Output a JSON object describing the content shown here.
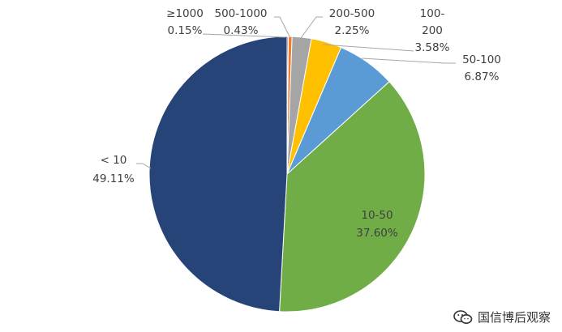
{
  "chart_data": {
    "type": "pie",
    "start_angle_deg": 0,
    "direction": "clockwise",
    "slices": [
      {
        "label": "≥1000",
        "pct_text": "0.15%",
        "value": 0.15,
        "color": "#C0504D"
      },
      {
        "label": "500-1000",
        "pct_text": "0.43%",
        "value": 0.43,
        "color": "#ED7D31"
      },
      {
        "label": "200-500",
        "pct_text": "2.25%",
        "value": 2.25,
        "color": "#A5A5A5"
      },
      {
        "label": "100-200",
        "pct_text": "3.58%",
        "value": 3.58,
        "color": "#FFC000"
      },
      {
        "label": "50-100",
        "pct_text": "6.87%",
        "value": 6.87,
        "color": "#5B9BD5"
      },
      {
        "label": "10-50",
        "pct_text": "37.60%",
        "value": 37.6,
        "color": "#70AD47"
      },
      {
        "label": "< 10",
        "pct_text": "49.11%",
        "value": 49.11,
        "color": "#264478"
      }
    ]
  },
  "watermark": {
    "text": "国信博后观察",
    "icon": "wechat-icon"
  }
}
